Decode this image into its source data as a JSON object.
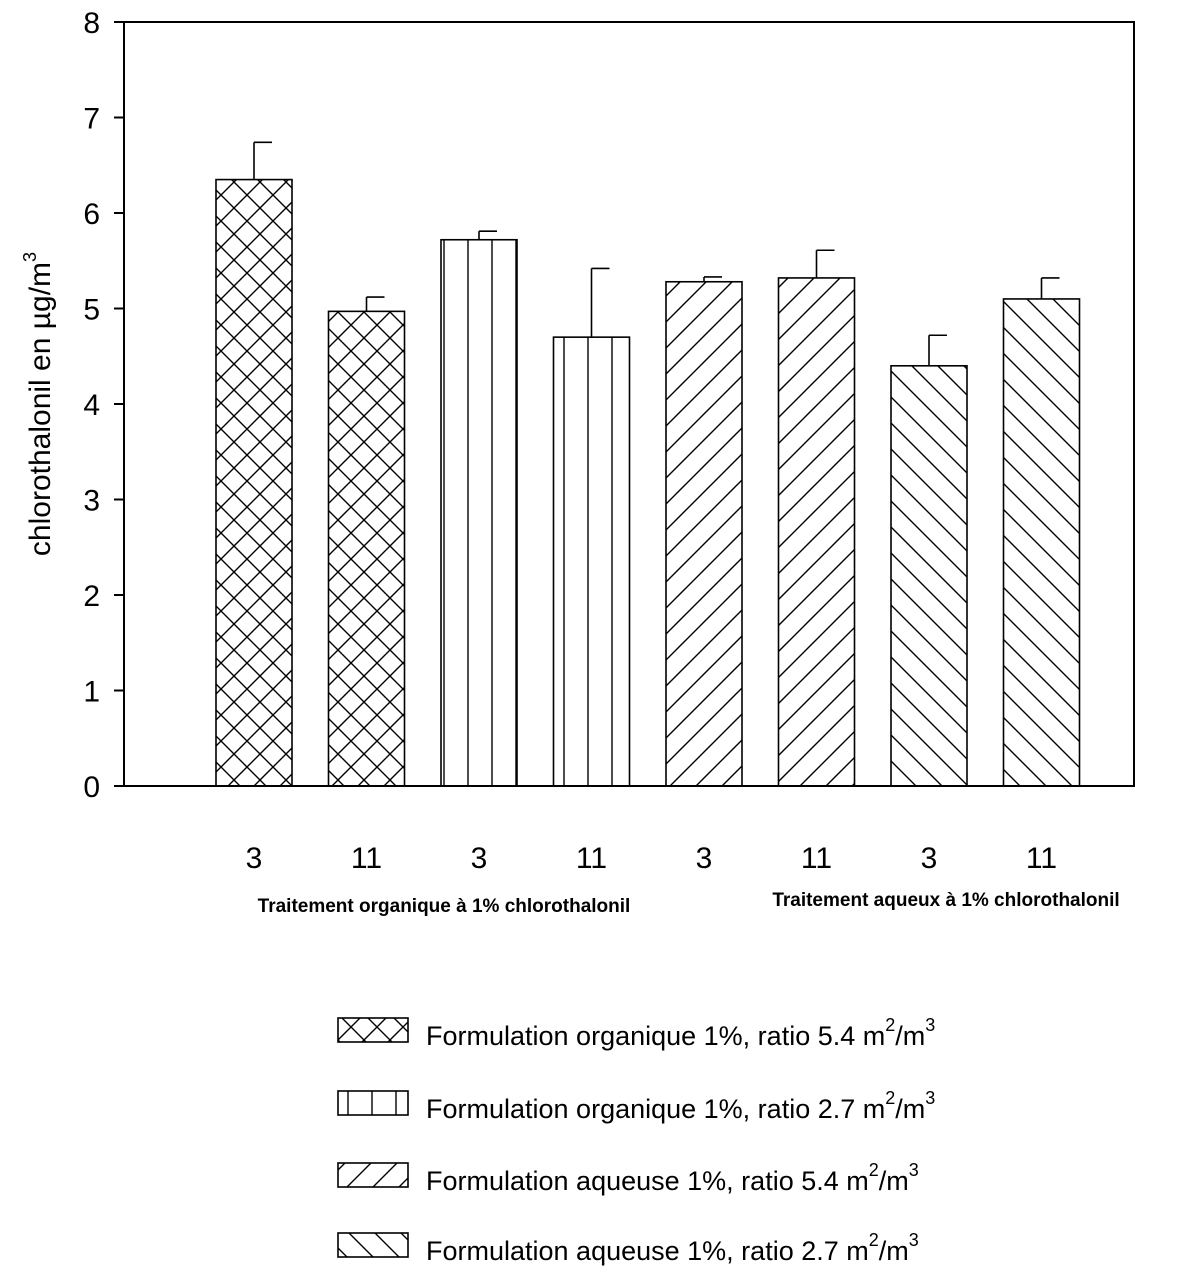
{
  "chart_data": {
    "type": "bar",
    "ylabel": "chlorothalonil en µg/m",
    "ylabel_sup": "3",
    "ylim": [
      0,
      8
    ],
    "yticks": [
      "0",
      "1",
      "2",
      "3",
      "4",
      "5",
      "6",
      "7",
      "8"
    ],
    "categories": [
      "3",
      "11",
      "3",
      "11",
      "3",
      "11",
      "3",
      "11"
    ],
    "values": [
      6.35,
      4.97,
      5.72,
      4.7,
      5.28,
      5.32,
      4.4,
      5.1
    ],
    "errors": [
      0.39,
      0.15,
      0.09,
      0.72,
      0.05,
      0.29,
      0.32,
      0.22
    ],
    "series_index": [
      0,
      0,
      1,
      1,
      2,
      2,
      3,
      3
    ],
    "patterns": [
      "crosshatch",
      "vertical",
      "diagonal-up",
      "diagonal-down"
    ],
    "groups": [
      "Traitement organique à 1% chlorothalonil",
      "Traitement aqueux à 1% chlorothalonil"
    ],
    "legend": [
      {
        "text": "Formulation organique 1%, ratio 5.4 m",
        "sup1": "2",
        "mid": "/m",
        "sup2": "3",
        "pattern": "crosshatch"
      },
      {
        "text": "Formulation organique 1%, ratio 2.7 m",
        "sup1": "2",
        "mid": "/m",
        "sup2": "3",
        "pattern": "vertical"
      },
      {
        "text": "Formulation aqueuse 1%, ratio 5.4 m",
        "sup1": "2",
        "mid": "/m",
        "sup2": "3",
        "pattern": "diagonal-up"
      },
      {
        "text": "Formulation aqueuse 1%, ratio 2.7 m",
        "sup1": "2",
        "mid": "/m",
        "sup2": "3",
        "pattern": "diagonal-down"
      }
    ],
    "legend_position": "bottom"
  }
}
